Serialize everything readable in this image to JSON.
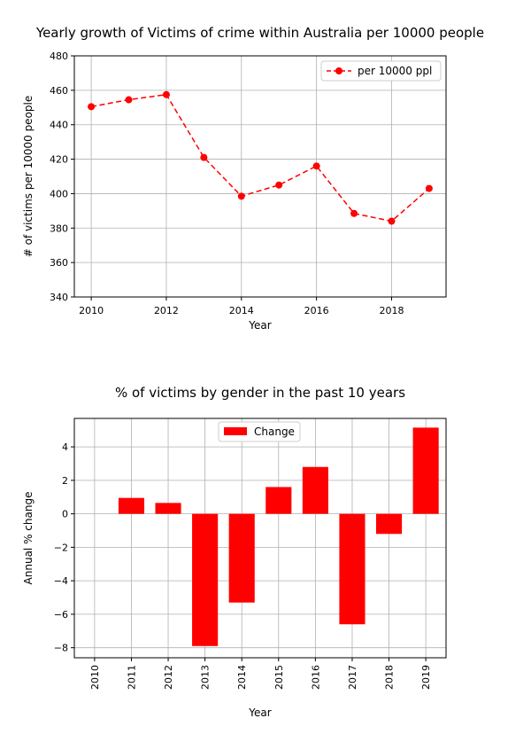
{
  "chart_data": [
    {
      "type": "line",
      "title": "Yearly growth of Victims of crime within Australia per 10000 people",
      "xlabel": "Year",
      "ylabel": "# of victims per 10000 people",
      "x": [
        2010,
        2011,
        2012,
        2013,
        2014,
        2015,
        2016,
        2017,
        2018,
        2019
      ],
      "series": [
        {
          "name": "per 10000 ppl",
          "values": [
            450.5,
            454.5,
            457.5,
            421,
            398.5,
            405,
            416,
            388.5,
            384,
            403
          ],
          "color": "#ff0000",
          "style": "dashed",
          "marker": "circle"
        }
      ],
      "xticks": [
        2010,
        2012,
        2014,
        2016,
        2018
      ],
      "xlim": [
        2009.55,
        2019.45
      ],
      "yticks": [
        340,
        360,
        380,
        400,
        420,
        440,
        460,
        480
      ],
      "ylim": [
        340,
        480
      ],
      "grid": true,
      "legend_position": "upper right"
    },
    {
      "type": "bar",
      "title": "% of victims by gender in the past 10 years",
      "xlabel": "Year",
      "ylabel": "Annual % change",
      "categories": [
        "2010",
        "2011",
        "2012",
        "2013",
        "2014",
        "2015",
        "2016",
        "2017",
        "2018",
        "2019"
      ],
      "series": [
        {
          "name": "Change",
          "values": [
            0,
            0.95,
            0.65,
            -7.9,
            -5.3,
            1.6,
            2.8,
            -6.6,
            -1.2,
            5.15
          ],
          "color": "#ff0000"
        }
      ],
      "yticks": [
        -8,
        -6,
        -4,
        -2,
        0,
        2,
        4
      ],
      "ylim": [
        -8.6,
        5.7
      ],
      "grid": true,
      "legend_position": "upper center"
    }
  ]
}
